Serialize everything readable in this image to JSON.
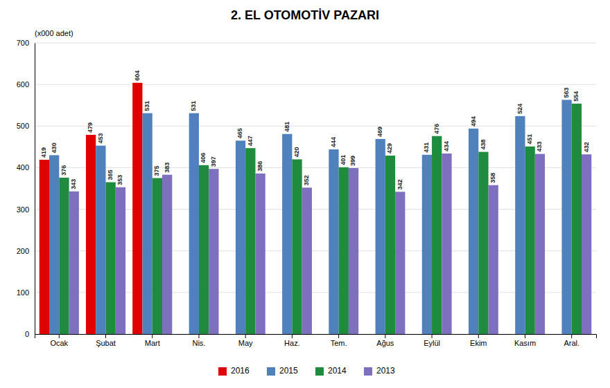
{
  "chart_data": {
    "type": "bar",
    "title": "2. EL OTOMOTİV PAZARI",
    "ylabel": "(x000 adet)",
    "categories": [
      "Ocak",
      "Şubat",
      "Mart",
      "Nis.",
      "May",
      "Haz.",
      "Tem.",
      "Ağus",
      "Eylül",
      "Ekim",
      "Kasım",
      "Aral."
    ],
    "series": [
      {
        "name": "2016",
        "color": "#e00000",
        "values": [
          419,
          479,
          604,
          null,
          null,
          null,
          null,
          null,
          null,
          null,
          null,
          null
        ]
      },
      {
        "name": "2015",
        "color": "#4f81bd",
        "values": [
          430,
          453,
          531,
          531,
          465,
          481,
          444,
          469,
          431,
          494,
          524,
          563
        ]
      },
      {
        "name": "2014",
        "color": "#1e8b3e",
        "values": [
          376,
          365,
          375,
          406,
          447,
          420,
          401,
          429,
          476,
          438,
          451,
          554
        ]
      },
      {
        "name": "2013",
        "color": "#7f6fbf",
        "values": [
          343,
          353,
          383,
          397,
          386,
          352,
          399,
          342,
          434,
          358,
          433,
          432
        ]
      }
    ],
    "ylim": [
      0,
      700
    ],
    "yticks": [
      0,
      100,
      200,
      300,
      400,
      500,
      600,
      700
    ],
    "grid": true,
    "legend": "bottom",
    "data_labels": true
  }
}
